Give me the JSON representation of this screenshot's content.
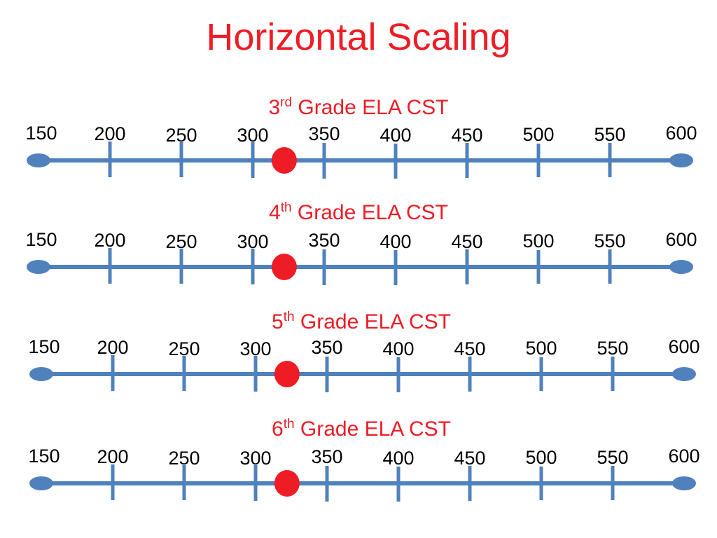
{
  "title": "Horizontal Scaling",
  "colors": {
    "title": "#ee1c25",
    "line": "#4f81bd",
    "marker": "#ee1c25",
    "label": "#000000"
  },
  "tick_values": [
    "150",
    "200",
    "250",
    "300",
    "350",
    "400",
    "450",
    "500",
    "550",
    "600"
  ],
  "scales": [
    {
      "grade_number": "3",
      "grade_suffix": "rd",
      "grade_text": " Grade ELA CST",
      "marker_value": 322
    },
    {
      "grade_number": "4",
      "grade_suffix": "th",
      "grade_text": " Grade ELA CST",
      "marker_value": 322
    },
    {
      "grade_number": "5",
      "grade_suffix": "th",
      "grade_text": " Grade ELA CST",
      "marker_value": 322
    },
    {
      "grade_number": "6",
      "grade_suffix": "th",
      "grade_text": " Grade ELA CST",
      "marker_value": 322
    }
  ]
}
